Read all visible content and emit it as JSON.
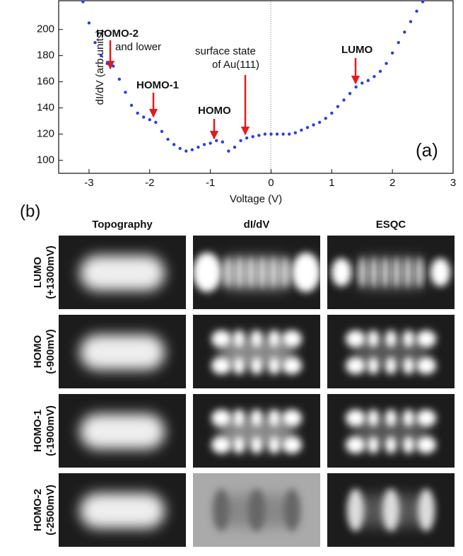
{
  "chart_data": {
    "type": "scatter",
    "x_label": "Voltage (V)",
    "y_label": "dI/dV  (arb.units)",
    "xlim": [
      -3.5,
      3
    ],
    "xticks": [
      -3,
      -2,
      -1,
      0,
      1,
      2,
      3
    ],
    "ylim": [
      90,
      222
    ],
    "yticks": [
      100,
      120,
      140,
      160,
      180,
      200
    ],
    "annotations": [
      "HOMO-2",
      "and lower",
      "HOMO-1",
      "HOMO",
      "surface state",
      "of Au(111)",
      "LUMO",
      "(a)"
    ],
    "series": [
      {
        "color": "#2a3fe0",
        "x": [
          -3.1,
          -3.0,
          -2.9,
          -2.8,
          -2.7,
          -2.6,
          -2.5,
          -2.4,
          -2.3,
          -2.2,
          -2.1,
          -2.0,
          -1.9,
          -1.8,
          -1.7,
          -1.6,
          -1.5,
          -1.4,
          -1.3,
          -1.2,
          -1.1,
          -1.0,
          -0.9,
          -0.8,
          -0.7,
          -0.6,
          -0.5,
          -0.4,
          -0.3,
          -0.2,
          -0.1,
          0,
          0.1,
          0.2,
          0.3,
          0.4,
          0.5,
          0.6,
          0.7,
          0.8,
          0.9,
          1.0,
          1.1,
          1.2,
          1.3,
          1.4,
          1.5,
          1.6,
          1.7,
          1.8,
          1.9,
          2.0,
          2.1,
          2.2,
          2.3,
          2.4,
          2.5
        ],
        "values": [
          222,
          205,
          190,
          180,
          174,
          172,
          162,
          152,
          142,
          136,
          133,
          131,
          129,
          122,
          116,
          112,
          109,
          107,
          108,
          110,
          112,
          113,
          115,
          114,
          107,
          110,
          115,
          117,
          118,
          119,
          120,
          120,
          120,
          120,
          120,
          121,
          123,
          125,
          127,
          129,
          132,
          136,
          141,
          146,
          151,
          156,
          159,
          161,
          164,
          168,
          174,
          182,
          190,
          198,
          206,
          214,
          222
        ]
      }
    ]
  },
  "panel_b": {
    "label": "(b)",
    "columns": [
      "Topography",
      "dI/dV",
      "ESQC"
    ],
    "rows": [
      {
        "name": "LUMO",
        "bias": "(+1300mV)"
      },
      {
        "name": "HOMO",
        "bias": "(-900mV)"
      },
      {
        "name": "HOMO-1",
        "bias": "(-1900mV)"
      },
      {
        "name": "HOMO-2",
        "bias": "(-2500mV)"
      }
    ]
  }
}
